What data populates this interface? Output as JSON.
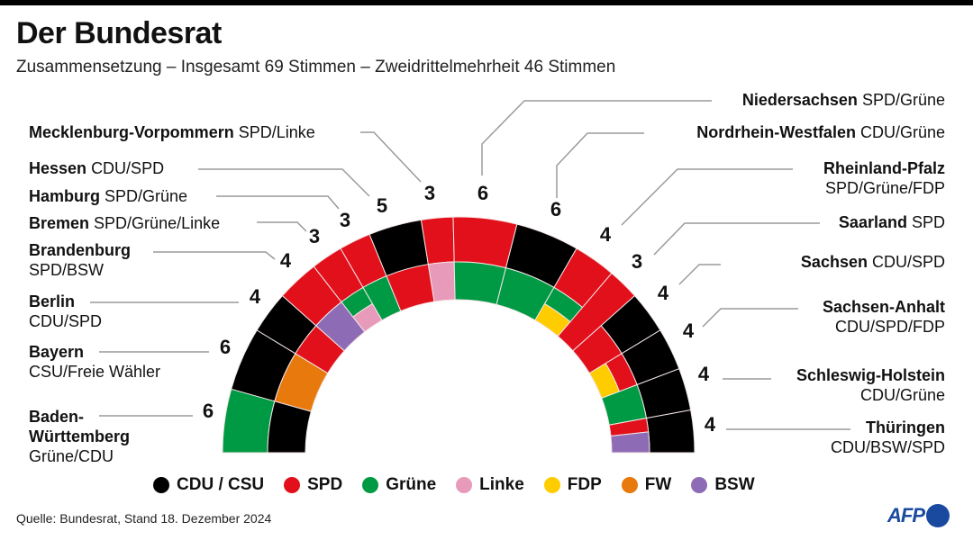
{
  "header": {
    "title": "Der Bundesrat",
    "subtitle": "Zusammensetzung – Insgesamt 69 Stimmen – Zweidrittelmehrheit 46 Stimmen"
  },
  "colors": {
    "CDU / CSU": "#000000",
    "SPD": "#e2101b",
    "Grüne": "#009a44",
    "Linke": "#e79ab9",
    "FDP": "#ffcc00",
    "FW": "#e8790c",
    "BSW": "#8e6bb5",
    "afp": "#1a4aa0"
  },
  "legend": [
    {
      "label": "CDU / CSU",
      "key": "CDU / CSU"
    },
    {
      "label": "SPD",
      "key": "SPD"
    },
    {
      "label": "Grüne",
      "key": "Grüne"
    },
    {
      "label": "Linke",
      "key": "Linke"
    },
    {
      "label": "FDP",
      "key": "FDP"
    },
    {
      "label": "FW",
      "key": "FW"
    },
    {
      "label": "BSW",
      "key": "BSW"
    }
  ],
  "chart_data": {
    "type": "semicircle-parliament",
    "title": "Der Bundesrat",
    "subtitle": "Zusammensetzung – Insgesamt 69 Stimmen – Zweidrittelmehrheit 46 Stimmen",
    "total_votes": 69,
    "two_thirds_majority": 46,
    "states": [
      {
        "name": "Baden-Württemberg",
        "coalition": "Grüne/CDU",
        "votes": 6,
        "outer": "Grüne",
        "inner": [
          {
            "party": "CDU / CSU"
          }
        ]
      },
      {
        "name": "Bayern",
        "coalition": "CSU/Freie Wähler",
        "votes": 6,
        "outer": "CDU / CSU",
        "inner": [
          {
            "party": "FW"
          }
        ]
      },
      {
        "name": "Berlin",
        "coalition": "CDU/SPD",
        "votes": 4,
        "outer": "CDU / CSU",
        "inner": [
          {
            "party": "SPD"
          }
        ]
      },
      {
        "name": "Brandenburg",
        "coalition": "SPD/BSW",
        "votes": 4,
        "outer": "SPD",
        "inner": [
          {
            "party": "BSW"
          }
        ]
      },
      {
        "name": "Bremen",
        "coalition": "SPD/Grüne/Linke",
        "votes": 3,
        "outer": "SPD",
        "inner": [
          {
            "party": "Grüne",
            "band": "outer"
          },
          {
            "party": "Linke",
            "band": "inner"
          }
        ]
      },
      {
        "name": "Hamburg",
        "coalition": "SPD/Grüne",
        "votes": 3,
        "outer": "SPD",
        "inner": [
          {
            "party": "Grüne"
          }
        ]
      },
      {
        "name": "Hessen",
        "coalition": "CDU/SPD",
        "votes": 5,
        "outer": "CDU / CSU",
        "inner": [
          {
            "party": "SPD"
          }
        ]
      },
      {
        "name": "Mecklenburg-Vorpommern",
        "coalition": "SPD/Linke",
        "votes": 3,
        "outer": "SPD",
        "inner": [
          {
            "party": "Linke"
          }
        ]
      },
      {
        "name": "Niedersachsen",
        "coalition": "SPD/Grüne",
        "votes": 6,
        "outer": "SPD",
        "inner": [
          {
            "party": "Grüne"
          }
        ]
      },
      {
        "name": "Nordrhein-Westfalen",
        "coalition": "CDU/Grüne",
        "votes": 6,
        "outer": "CDU / CSU",
        "inner": [
          {
            "party": "Grüne"
          }
        ]
      },
      {
        "name": "Rheinland-Pfalz",
        "coalition": "SPD/Grüne/FDP",
        "votes": 4,
        "outer": "SPD",
        "inner": [
          {
            "party": "Grüne",
            "band": "outer"
          },
          {
            "party": "FDP",
            "band": "inner"
          }
        ]
      },
      {
        "name": "Saarland",
        "coalition": "SPD",
        "votes": 3,
        "outer": "SPD",
        "inner": [
          {
            "party": "SPD"
          }
        ]
      },
      {
        "name": "Sachsen",
        "coalition": "CDU/SPD",
        "votes": 4,
        "outer": "CDU / CSU",
        "inner": [
          {
            "party": "SPD"
          }
        ]
      },
      {
        "name": "Sachsen-Anhalt",
        "coalition": "CDU/SPD/FDP",
        "votes": 4,
        "outer": "CDU / CSU",
        "inner": [
          {
            "party": "SPD",
            "band": "outer"
          },
          {
            "party": "FDP",
            "band": "inner"
          }
        ]
      },
      {
        "name": "Schleswig-Holstein",
        "coalition": "CDU/Grüne",
        "votes": 4,
        "outer": "CDU / CSU",
        "inner": [
          {
            "party": "Grüne"
          }
        ]
      },
      {
        "name": "Thüringen",
        "coalition": "CDU/BSW/SPD",
        "votes": 4,
        "outer": "CDU / CSU",
        "inner": [
          {
            "party": "SPD",
            "split": "angle"
          },
          {
            "party": "BSW",
            "split": "angle"
          }
        ]
      }
    ]
  },
  "footer": {
    "source": "Quelle: Bundesrat, Stand 18. Dezember 2024",
    "logo_text": "AFP"
  }
}
